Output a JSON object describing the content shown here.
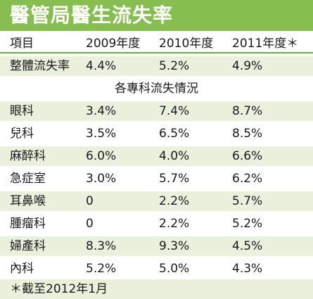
{
  "title": "醫管局醫生流失率",
  "header": [
    "項目",
    "2009年度",
    "2010年度",
    "2011年度＊"
  ],
  "overall": [
    "整體流失率",
    "4.4%",
    "5.2%",
    "4.9%"
  ],
  "section_label": "各專科流失情況",
  "rows": [
    [
      "眼科",
      "3.4%",
      "7.4%",
      "8.7%"
    ],
    [
      "兒科",
      "3.5%",
      "6.5%",
      "8.5%"
    ],
    [
      "麻醉科",
      "6.0%",
      "4.0%",
      "6.6%"
    ],
    [
      "急症室",
      "3.0%",
      "5.7%",
      "6.2%"
    ],
    [
      "耳鼻喉",
      "0",
      "2.2%",
      "5.7%"
    ],
    [
      "腫瘤科",
      "0",
      "2.2%",
      "5.2%"
    ],
    [
      "婦產科",
      "8.3%",
      "9.3%",
      "4.5%"
    ],
    [
      "內科",
      "5.2%",
      "5.0%",
      "4.3%"
    ]
  ],
  "footnote": "＊截至2012年1月",
  "colors": {
    "title_bar": "#86bf4f",
    "row_shade": "#e9f1dd",
    "rule": "#6fae3d"
  }
}
